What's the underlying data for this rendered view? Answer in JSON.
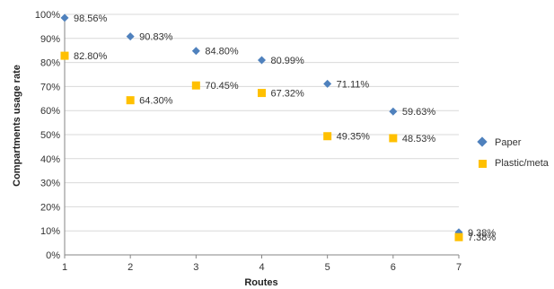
{
  "chart_data": {
    "type": "scatter",
    "xlabel": "Routes",
    "ylabel": "Compartments usage rate",
    "xlim": [
      1,
      7
    ],
    "ylim": [
      0,
      100
    ],
    "x_ticks": [
      "1",
      "2",
      "3",
      "4",
      "5",
      "6",
      "7"
    ],
    "y_ticks": [
      "0%",
      "10%",
      "20%",
      "30%",
      "40%",
      "50%",
      "60%",
      "70%",
      "80%",
      "90%",
      "100%"
    ],
    "grid": true,
    "legend_position": "right",
    "series": [
      {
        "name": "Paper",
        "marker": "diamond",
        "color": "#4f81bd",
        "x": [
          1,
          2,
          3,
          4,
          5,
          6,
          7
        ],
        "values": [
          98.56,
          90.83,
          84.8,
          80.99,
          71.11,
          59.63,
          9.38
        ],
        "labels": [
          "98.56%",
          "90.83%",
          "84.80%",
          "80.99%",
          "71.11%",
          "59.63%",
          "9.38%"
        ]
      },
      {
        "name": "Plastic/meta",
        "marker": "square",
        "color": "#ffc000",
        "x": [
          1,
          2,
          3,
          4,
          5,
          6,
          7
        ],
        "values": [
          82.8,
          64.3,
          70.45,
          67.32,
          49.35,
          48.53,
          7.38
        ],
        "labels": [
          "82.80%",
          "64.30%",
          "70.45%",
          "67.32%",
          "49.35%",
          "48.53%",
          "7.38%"
        ]
      }
    ]
  }
}
